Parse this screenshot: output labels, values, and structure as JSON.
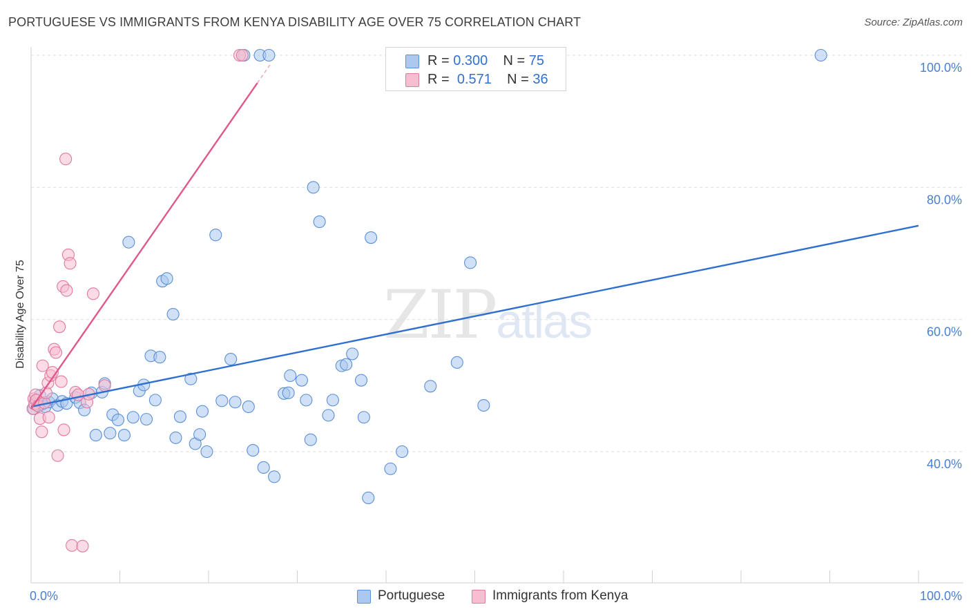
{
  "header": {
    "title": "PORTUGUESE VS IMMIGRANTS FROM KENYA DISABILITY AGE OVER 75 CORRELATION CHART",
    "source": "Source: ZipAtlas.com"
  },
  "watermark": {
    "zip": "ZIP",
    "atlas": "atlas"
  },
  "legend": {
    "rows": [
      {
        "r_label": "R =",
        "r_value": "0.300",
        "n_label": "N =",
        "n_value": "75",
        "color": "#aac8f0",
        "border": "#5b8fd6"
      },
      {
        "r_label": "R =",
        "r_value": "0.571",
        "n_label": "N =",
        "n_value": "36",
        "color": "#f7bdd0",
        "border": "#e0799f"
      }
    ]
  },
  "bottom_legend": [
    {
      "label": "Portuguese",
      "color": "#aac8f0",
      "border": "#5b8fd6"
    },
    {
      "label": "Immigrants from Kenya",
      "color": "#f7bdd0",
      "border": "#e0799f"
    }
  ],
  "chart_data": {
    "type": "scatter",
    "title": "PORTUGUESE VS IMMIGRANTS FROM KENYA DISABILITY AGE OVER 75 CORRELATION CHART",
    "xlabel": "",
    "ylabel": "Disability Age Over 75",
    "xlim": [
      0,
      100
    ],
    "ylim": [
      22,
      102
    ],
    "x_ticks": [
      "0.0%",
      "100.0%"
    ],
    "y_ticks": [
      {
        "value": 40,
        "label": "40.0%"
      },
      {
        "value": 60,
        "label": "60.0%"
      },
      {
        "value": 80,
        "label": "80.0%"
      },
      {
        "value": 100,
        "label": "100.0%"
      }
    ],
    "grid": true,
    "legend_position": "top-center",
    "series": [
      {
        "name": "Portuguese",
        "color": "#5b8fd6",
        "fill": "#aac8f0",
        "trend": {
          "x0": 0,
          "y0": 46.8,
          "x1": 100,
          "y1": 74.2,
          "color": "#2f6fcf"
        },
        "points": [
          [
            0.3,
            46.5
          ],
          [
            0.5,
            47.8
          ],
          [
            0.7,
            47.0
          ],
          [
            1.0,
            48.5
          ],
          [
            1.3,
            47.2
          ],
          [
            1.6,
            46.8
          ],
          [
            2.0,
            47.5
          ],
          [
            2.4,
            48.0
          ],
          [
            3.0,
            47.0
          ],
          [
            3.5,
            47.6
          ],
          [
            4.0,
            47.3
          ],
          [
            5.0,
            48.2
          ],
          [
            5.5,
            47.4
          ],
          [
            6.0,
            46.3
          ],
          [
            6.8,
            48.9
          ],
          [
            7.3,
            42.5
          ],
          [
            8.0,
            49.0
          ],
          [
            8.3,
            50.3
          ],
          [
            8.9,
            42.8
          ],
          [
            9.2,
            45.6
          ],
          [
            9.8,
            44.8
          ],
          [
            10.5,
            42.5
          ],
          [
            11.0,
            71.7
          ],
          [
            11.5,
            45.2
          ],
          [
            12.2,
            49.2
          ],
          [
            12.7,
            50.1
          ],
          [
            13.0,
            44.9
          ],
          [
            13.5,
            54.5
          ],
          [
            14.0,
            47.8
          ],
          [
            14.5,
            54.3
          ],
          [
            14.8,
            65.8
          ],
          [
            15.3,
            66.2
          ],
          [
            16.0,
            60.8
          ],
          [
            16.3,
            42.1
          ],
          [
            16.8,
            45.3
          ],
          [
            18.0,
            51.0
          ],
          [
            18.5,
            41.2
          ],
          [
            19.0,
            42.6
          ],
          [
            19.3,
            46.1
          ],
          [
            19.8,
            40.0
          ],
          [
            20.8,
            72.8
          ],
          [
            21.5,
            47.7
          ],
          [
            22.5,
            54.0
          ],
          [
            23.0,
            47.5
          ],
          [
            24.0,
            100
          ],
          [
            24.5,
            46.8
          ],
          [
            25.0,
            40.2
          ],
          [
            25.8,
            100
          ],
          [
            26.2,
            37.6
          ],
          [
            26.8,
            100
          ],
          [
            27.4,
            36.2
          ],
          [
            28.5,
            48.8
          ],
          [
            29.0,
            48.9
          ],
          [
            29.2,
            51.5
          ],
          [
            30.5,
            50.8
          ],
          [
            31.0,
            47.8
          ],
          [
            31.5,
            41.8
          ],
          [
            31.8,
            80.0
          ],
          [
            32.5,
            74.8
          ],
          [
            33.5,
            45.5
          ],
          [
            34.0,
            47.8
          ],
          [
            35.0,
            53.0
          ],
          [
            35.5,
            53.2
          ],
          [
            36.2,
            54.8
          ],
          [
            37.2,
            50.8
          ],
          [
            37.5,
            45.2
          ],
          [
            38.0,
            33.0
          ],
          [
            38.3,
            72.4
          ],
          [
            40.5,
            37.4
          ],
          [
            41.8,
            40.0
          ],
          [
            45.0,
            49.9
          ],
          [
            48.0,
            53.5
          ],
          [
            49.5,
            68.6
          ],
          [
            51.0,
            47.0
          ],
          [
            89.0,
            100
          ]
        ]
      },
      {
        "name": "Immigrants from Kenya",
        "color": "#e0799f",
        "fill": "#f7bdd0",
        "trend": {
          "x0": 0,
          "y0": 46.5,
          "x1": 25.5,
          "y1": 95.8,
          "dash_to_x": 27.0,
          "dash_to_y": 98.7,
          "color": "#e0578a"
        },
        "points": [
          [
            0.2,
            46.5
          ],
          [
            0.3,
            48.0
          ],
          [
            0.4,
            47.2
          ],
          [
            0.5,
            48.6
          ],
          [
            0.6,
            47.8
          ],
          [
            0.8,
            46.9
          ],
          [
            1.0,
            45.0
          ],
          [
            1.2,
            43.0
          ],
          [
            1.3,
            53.0
          ],
          [
            1.5,
            47.4
          ],
          [
            1.7,
            48.9
          ],
          [
            1.9,
            50.4
          ],
          [
            2.0,
            45.2
          ],
          [
            2.2,
            51.5
          ],
          [
            2.4,
            52.0
          ],
          [
            2.6,
            55.5
          ],
          [
            2.8,
            55.0
          ],
          [
            3.0,
            39.4
          ],
          [
            3.2,
            58.9
          ],
          [
            3.4,
            50.6
          ],
          [
            3.6,
            65.0
          ],
          [
            3.7,
            43.3
          ],
          [
            3.9,
            84.3
          ],
          [
            4.0,
            64.4
          ],
          [
            4.2,
            69.8
          ],
          [
            4.4,
            68.5
          ],
          [
            4.6,
            25.8
          ],
          [
            5.0,
            49.0
          ],
          [
            5.3,
            48.6
          ],
          [
            5.8,
            25.7
          ],
          [
            6.3,
            47.5
          ],
          [
            6.5,
            48.7
          ],
          [
            7.0,
            63.9
          ],
          [
            8.3,
            50.0
          ],
          [
            23.5,
            100
          ],
          [
            23.8,
            100
          ]
        ]
      }
    ]
  }
}
